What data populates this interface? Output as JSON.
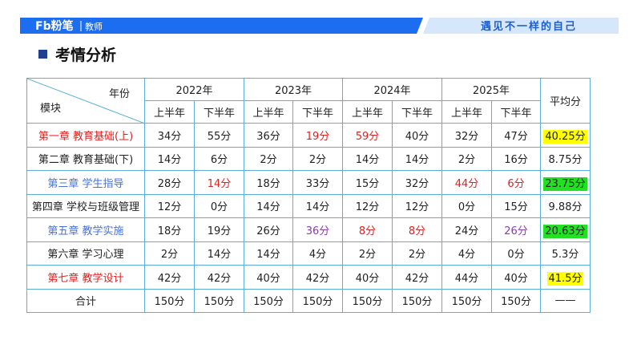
{
  "header": {
    "logo": "Fb粉笔",
    "logo_sub": "教师",
    "slogan": "遇见不一样的自己"
  },
  "title": "考情分析",
  "table": {
    "corner_top": "年份",
    "corner_bottom": "模块",
    "years": [
      "2022年",
      "2023年",
      "2024年",
      "2025年"
    ],
    "halves": [
      "上半年",
      "下半年",
      "上半年",
      "下半年",
      "上半年",
      "下半年",
      "上半年",
      "下半年"
    ],
    "average_header": "平均分",
    "rows": [
      {
        "module": "第一章 教育基础(上)",
        "module_color": "#e02020",
        "cells": [
          "34分",
          "55分",
          "36分",
          "19分",
          "59分",
          "40分",
          "32分",
          "47分"
        ],
        "cell_colors": [
          "#222",
          "#222",
          "#222",
          "#e02020",
          "#e02020",
          "#222",
          "#222",
          "#222"
        ],
        "average": "40.25分",
        "average_bg": "#ffff00"
      },
      {
        "module": "第二章 教育基础(下)",
        "module_color": "#222",
        "cells": [
          "14分",
          "6分",
          "2分",
          "2分",
          "14分",
          "14分",
          "2分",
          "16分"
        ],
        "cell_colors": [
          "#222",
          "#222",
          "#222",
          "#222",
          "#222",
          "#222",
          "#222",
          "#222"
        ],
        "average": "8.75分",
        "average_bg": "#ffffff"
      },
      {
        "module": "第三章 学生指导",
        "module_color": "#4a72d8",
        "cells": [
          "28分",
          "14分",
          "18分",
          "33分",
          "15分",
          "32分",
          "44分",
          "6分"
        ],
        "cell_colors": [
          "#222",
          "#e02020",
          "#222",
          "#222",
          "#222",
          "#222",
          "#e02020",
          "#e02020"
        ],
        "average": "23.75分",
        "average_bg": "#22e022"
      },
      {
        "module": "第四章 学校与班级管理",
        "module_color": "#222",
        "cells": [
          "12分",
          "0分",
          "14分",
          "14分",
          "12分",
          "12分",
          "0分",
          "15分"
        ],
        "cell_colors": [
          "#222",
          "#222",
          "#222",
          "#222",
          "#222",
          "#222",
          "#222",
          "#222"
        ],
        "average": "9.88分",
        "average_bg": "#ffffff"
      },
      {
        "module": "第五章 教学实施",
        "module_color": "#4a72d8",
        "cells": [
          "18分",
          "19分",
          "26分",
          "36分",
          "8分",
          "8分",
          "24分",
          "26分"
        ],
        "cell_colors": [
          "#222",
          "#222",
          "#222",
          "#8a3cb0",
          "#e02020",
          "#e02020",
          "#222",
          "#8a3cb0"
        ],
        "average": "20.63分",
        "average_bg": "#22e022"
      },
      {
        "module": "第六章 学习心理",
        "module_color": "#222",
        "cells": [
          "2分",
          "14分",
          "14分",
          "4分",
          "2分",
          "2分",
          "4分",
          "0分"
        ],
        "cell_colors": [
          "#222",
          "#222",
          "#222",
          "#222",
          "#222",
          "#222",
          "#222",
          "#222"
        ],
        "average": "5.3分",
        "average_bg": "#ffffff"
      },
      {
        "module": "第七章 教学设计",
        "module_color": "#e02020",
        "cells": [
          "42分",
          "42分",
          "40分",
          "42分",
          "40分",
          "42分",
          "44分",
          "40分"
        ],
        "cell_colors": [
          "#222",
          "#222",
          "#222",
          "#222",
          "#222",
          "#222",
          "#222",
          "#222"
        ],
        "average": "41.5分",
        "average_bg": "#ffff00"
      },
      {
        "module": "合计",
        "module_color": "#222",
        "cells": [
          "150分",
          "150分",
          "150分",
          "150分",
          "150分",
          "150分",
          "150分",
          "150分"
        ],
        "cell_colors": [
          "#222",
          "#222",
          "#222",
          "#222",
          "#222",
          "#222",
          "#222",
          "#222"
        ],
        "average": "——",
        "average_bg": "#ffffff"
      }
    ]
  }
}
